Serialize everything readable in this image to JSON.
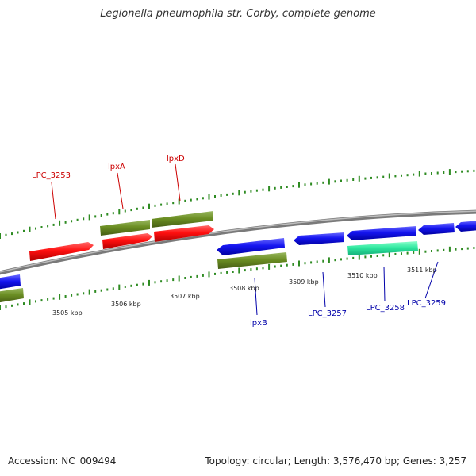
{
  "title": "Legionella pneumophila str. Corby, complete genome",
  "footer": {
    "accession": "Accession: NC_009494",
    "stats": "Topology: circular; Length: 3,576,470 bp; Genes: 3,257"
  },
  "colors": {
    "forward_label": "#cc0000",
    "reverse_label": "#0000aa",
    "backbone": "#909090",
    "tick": "#2e8b22"
  },
  "ruler_ticks": [
    {
      "kbp": 3505,
      "label": "3505 kbp"
    },
    {
      "kbp": 3506,
      "label": "3506 kbp"
    },
    {
      "kbp": 3507,
      "label": "3507 kbp"
    },
    {
      "kbp": 3508,
      "label": "3508 kbp"
    },
    {
      "kbp": 3509,
      "label": "3509 kbp"
    },
    {
      "kbp": 3510,
      "label": "3510 kbp"
    },
    {
      "kbp": 3511,
      "label": "3511 kbp"
    }
  ],
  "genes": [
    {
      "name": "LPC_3253",
      "strand": "forward",
      "kind": "CDS"
    },
    {
      "name": "lpxA",
      "strand": "forward",
      "kind": "CDS"
    },
    {
      "name": "lpxD",
      "strand": "forward",
      "kind": "CDS"
    },
    {
      "name": "lpxB",
      "strand": "reverse",
      "kind": "CDS"
    },
    {
      "name": "LPC_3257",
      "strand": "reverse",
      "kind": "CDS"
    },
    {
      "name": "LPC_3258",
      "strand": "reverse",
      "kind": "CDS"
    },
    {
      "name": "LPC_3259",
      "strand": "reverse",
      "kind": "CDS"
    }
  ]
}
